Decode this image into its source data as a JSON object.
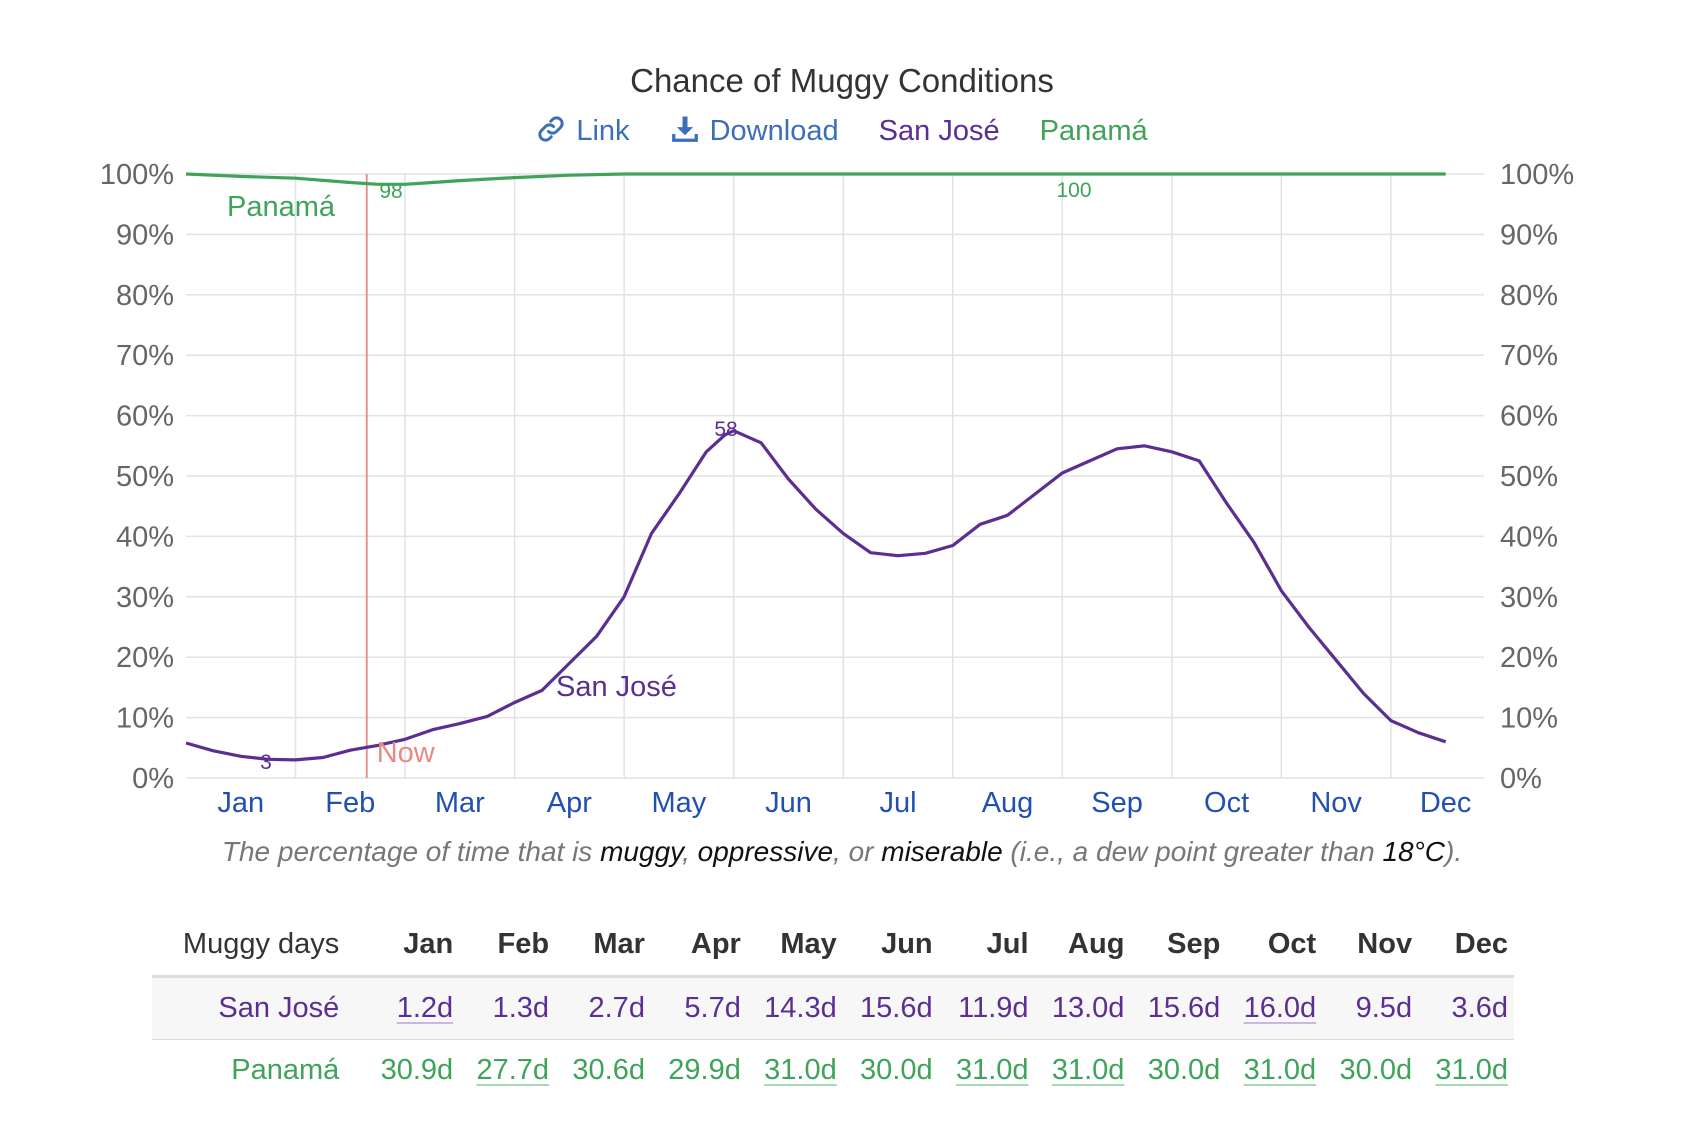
{
  "title": "Chance of Muggy Conditions",
  "toolbar": {
    "link_label": "Link",
    "download_label": "Download",
    "legend_sj": "San José",
    "legend_pa": "Panamá"
  },
  "colors": {
    "san_jose": "#5b2f91",
    "panama": "#3fa35a",
    "now_line": "#e88a84",
    "link": "#3c6fb7",
    "month_label": "#2250b0",
    "axis_text": "#666666",
    "grid": "#e2e2e2"
  },
  "chart_data": {
    "type": "line",
    "title": "Chance of Muggy Conditions",
    "x_unit": "month",
    "ylim": [
      0,
      100
    ],
    "y_ticks": [
      "0%",
      "10%",
      "20%",
      "30%",
      "40%",
      "50%",
      "60%",
      "70%",
      "80%",
      "90%",
      "100%"
    ],
    "month_labels": [
      "Jan",
      "Feb",
      "Mar",
      "Apr",
      "May",
      "Jun",
      "Jul",
      "Aug",
      "Sep",
      "Oct",
      "Nov",
      "Dec"
    ],
    "grid": true,
    "now": {
      "label": "Now",
      "month": 1.65
    },
    "series": [
      {
        "name": "San José",
        "color": "#5b2f91",
        "series_label": "San José",
        "min_label": "3",
        "max_label": "58",
        "points": [
          [
            0.0,
            5.8
          ],
          [
            0.25,
            4.5
          ],
          [
            0.5,
            3.6
          ],
          [
            0.75,
            3.1
          ],
          [
            1.0,
            3.0
          ],
          [
            1.25,
            3.4
          ],
          [
            1.5,
            4.6
          ],
          [
            1.75,
            5.4
          ],
          [
            2.0,
            6.4
          ],
          [
            2.25,
            8.0
          ],
          [
            2.5,
            9.0
          ],
          [
            2.75,
            10.2
          ],
          [
            3.0,
            12.5
          ],
          [
            3.25,
            14.5
          ],
          [
            3.5,
            19.0
          ],
          [
            3.75,
            23.5
          ],
          [
            4.0,
            30.0
          ],
          [
            4.25,
            40.5
          ],
          [
            4.5,
            47.0
          ],
          [
            4.75,
            54.0
          ],
          [
            4.92,
            56.8
          ],
          [
            5.0,
            57.5
          ],
          [
            5.25,
            55.5
          ],
          [
            5.5,
            49.5
          ],
          [
            5.75,
            44.5
          ],
          [
            6.0,
            40.5
          ],
          [
            6.25,
            37.3
          ],
          [
            6.5,
            36.8
          ],
          [
            6.75,
            37.2
          ],
          [
            7.0,
            38.5
          ],
          [
            7.25,
            42.0
          ],
          [
            7.5,
            43.5
          ],
          [
            7.75,
            47.0
          ],
          [
            8.0,
            50.5
          ],
          [
            8.25,
            52.5
          ],
          [
            8.5,
            54.5
          ],
          [
            8.75,
            55.0
          ],
          [
            9.0,
            54.0
          ],
          [
            9.25,
            52.5
          ],
          [
            9.5,
            45.5
          ],
          [
            9.75,
            39.0
          ],
          [
            10.0,
            31.0
          ],
          [
            10.25,
            25.0
          ],
          [
            10.5,
            19.5
          ],
          [
            10.75,
            14.0
          ],
          [
            11.0,
            9.5
          ],
          [
            11.25,
            7.5
          ],
          [
            11.5,
            6.0
          ]
        ]
      },
      {
        "name": "Panamá",
        "color": "#3fa35a",
        "series_label": "Panamá",
        "min_label": "98",
        "max_label": "100",
        "points": [
          [
            0.0,
            100.0
          ],
          [
            0.5,
            99.6
          ],
          [
            1.0,
            99.3
          ],
          [
            1.5,
            98.6
          ],
          [
            1.75,
            98.3
          ],
          [
            2.0,
            98.3
          ],
          [
            2.25,
            98.6
          ],
          [
            2.5,
            98.9
          ],
          [
            3.0,
            99.4
          ],
          [
            3.5,
            99.8
          ],
          [
            4.0,
            100.0
          ],
          [
            8.0,
            100.0
          ],
          [
            11.5,
            100.0
          ]
        ]
      }
    ],
    "caption": {
      "prefix": "The percentage of time that is ",
      "term1": "muggy",
      "sep1": ", ",
      "term2": "oppressive",
      "sep2": ", or ",
      "term3": "miserable",
      "mid": " (i.e., a dew point greater than ",
      "threshold": "18°C",
      "suffix": ")."
    }
  },
  "table": {
    "header_label": "Muggy days",
    "months": [
      "Jan",
      "Feb",
      "Mar",
      "Apr",
      "May",
      "Jun",
      "Jul",
      "Aug",
      "Sep",
      "Oct",
      "Nov",
      "Dec"
    ],
    "rows": [
      {
        "label": "San José",
        "values": [
          "1.2d",
          "1.3d",
          "2.7d",
          "5.7d",
          "14.3d",
          "15.6d",
          "11.9d",
          "13.0d",
          "15.6d",
          "16.0d",
          "9.5d",
          "3.6d"
        ],
        "underlined": [
          0,
          9
        ]
      },
      {
        "label": "Panamá",
        "values": [
          "30.9d",
          "27.7d",
          "30.6d",
          "29.9d",
          "31.0d",
          "30.0d",
          "31.0d",
          "31.0d",
          "30.0d",
          "31.0d",
          "30.0d",
          "31.0d"
        ],
        "underlined": [
          1,
          4,
          6,
          7,
          9,
          11
        ]
      }
    ]
  }
}
